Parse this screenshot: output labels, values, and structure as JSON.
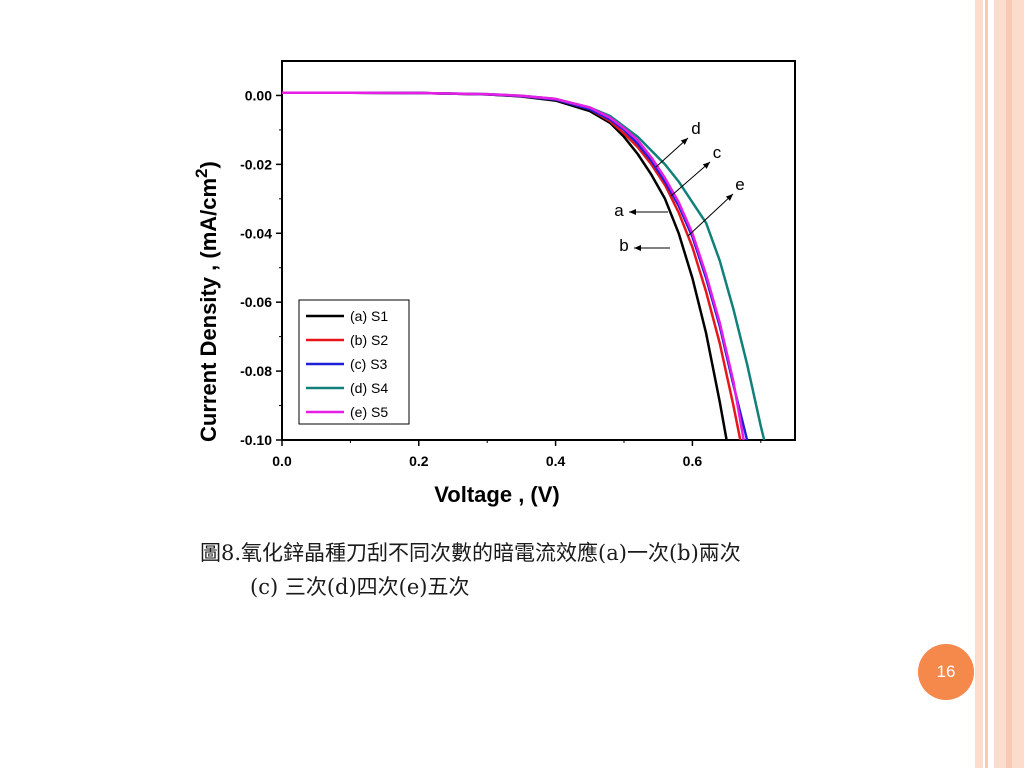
{
  "slide": {
    "caption_line1": "圖8.氧化鋅晶種刀刮不同次數的暗電流效應(a)一次(b)兩次",
    "caption_line2": "(c) 三次(d)四次(e)五次",
    "page_number": "16",
    "accent_color": "#f5884b",
    "stripe_colors": [
      "#f9c9b4",
      "#fbdccd"
    ]
  },
  "chart_data": {
    "type": "line",
    "xlabel": "Voltage , (V)",
    "ylabel_main": "Current Density , (mA/cm",
    "ylabel_sup": "2",
    "ylabel_close": ")",
    "xlim": [
      0.0,
      0.75
    ],
    "ylim": [
      -0.1,
      0.01
    ],
    "xticks": [
      "0.0",
      "0.2",
      "0.4",
      "0.6"
    ],
    "yticks": [
      "0.00",
      "-0.02",
      "-0.04",
      "-0.06",
      "-0.08",
      "-0.10"
    ],
    "grid": false,
    "legend_position": "bottom-left",
    "series": [
      {
        "name": "(a) S1",
        "color": "#000000",
        "x": [
          0.0,
          0.1,
          0.2,
          0.3,
          0.35,
          0.4,
          0.45,
          0.48,
          0.5,
          0.52,
          0.54,
          0.56,
          0.58,
          0.6,
          0.62,
          0.64,
          0.65
        ],
        "y": [
          0.0008,
          0.0008,
          0.0007,
          0.0003,
          -0.0003,
          -0.0015,
          -0.0045,
          -0.008,
          -0.012,
          -0.017,
          -0.023,
          -0.03,
          -0.04,
          -0.053,
          -0.069,
          -0.089,
          -0.1
        ]
      },
      {
        "name": "(b) S2",
        "color": "#e8161b",
        "x": [
          0.0,
          0.1,
          0.2,
          0.3,
          0.35,
          0.4,
          0.45,
          0.48,
          0.5,
          0.52,
          0.54,
          0.56,
          0.58,
          0.6,
          0.62,
          0.64,
          0.66,
          0.67
        ],
        "y": [
          0.0008,
          0.0008,
          0.0007,
          0.0003,
          -0.0002,
          -0.0012,
          -0.004,
          -0.0075,
          -0.011,
          -0.015,
          -0.02,
          -0.026,
          -0.034,
          -0.044,
          -0.057,
          -0.072,
          -0.09,
          -0.1
        ]
      },
      {
        "name": "(c) S3",
        "color": "#1f1fd6",
        "x": [
          0.0,
          0.1,
          0.2,
          0.3,
          0.35,
          0.4,
          0.45,
          0.48,
          0.5,
          0.52,
          0.54,
          0.56,
          0.58,
          0.6,
          0.62,
          0.64,
          0.66,
          0.68
        ],
        "y": [
          0.0008,
          0.0008,
          0.0007,
          0.0003,
          -0.0002,
          -0.0012,
          -0.004,
          -0.007,
          -0.01,
          -0.014,
          -0.019,
          -0.025,
          -0.032,
          -0.041,
          -0.053,
          -0.067,
          -0.084,
          -0.1
        ]
      },
      {
        "name": "(d) S4",
        "color": "#12807a",
        "x": [
          0.0,
          0.1,
          0.2,
          0.3,
          0.35,
          0.4,
          0.45,
          0.48,
          0.5,
          0.52,
          0.54,
          0.56,
          0.58,
          0.6,
          0.62,
          0.64,
          0.66,
          0.68,
          0.7,
          0.705
        ],
        "y": [
          0.0008,
          0.0008,
          0.0007,
          0.0004,
          -0.0001,
          -0.001,
          -0.0035,
          -0.006,
          -0.009,
          -0.012,
          -0.016,
          -0.02,
          -0.025,
          -0.031,
          -0.037,
          -0.048,
          -0.062,
          -0.078,
          -0.096,
          -0.1
        ]
      },
      {
        "name": "(e) S5",
        "color": "#e61ee6",
        "x": [
          0.0,
          0.1,
          0.2,
          0.3,
          0.35,
          0.4,
          0.45,
          0.48,
          0.5,
          0.52,
          0.54,
          0.56,
          0.58,
          0.6,
          0.62,
          0.64,
          0.66,
          0.675
        ],
        "y": [
          0.0008,
          0.0008,
          0.0007,
          0.0004,
          -0.0001,
          -0.001,
          -0.0035,
          -0.0065,
          -0.0095,
          -0.013,
          -0.018,
          -0.024,
          -0.031,
          -0.04,
          -0.052,
          -0.066,
          -0.083,
          -0.1
        ]
      }
    ],
    "annotations": [
      {
        "label": "d",
        "arrow": "up-right"
      },
      {
        "label": "c",
        "arrow": "up-right"
      },
      {
        "label": "e",
        "arrow": "up-right"
      },
      {
        "label": "a",
        "arrow": "left"
      },
      {
        "label": "b",
        "arrow": "left"
      }
    ]
  }
}
